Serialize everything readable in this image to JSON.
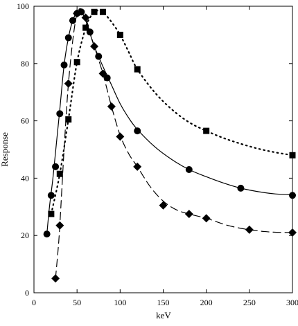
{
  "chart_data": {
    "type": "scatter",
    "title": "",
    "xlabel": "keV",
    "ylabel": "Response",
    "xlim": [
      0,
      300
    ],
    "ylim": [
      0,
      100
    ],
    "x_ticks": [
      0,
      50,
      100,
      150,
      200,
      250,
      300
    ],
    "y_ticks": [
      0,
      20,
      40,
      60,
      80,
      100
    ],
    "grid": false,
    "legend": "none",
    "series": [
      {
        "marker": "circle",
        "line_style": "solid",
        "color": "#000000",
        "points": [
          [
            15,
            20.5
          ],
          [
            20,
            34
          ],
          [
            25,
            44
          ],
          [
            30,
            62.5
          ],
          [
            35,
            79.5
          ],
          [
            40,
            89
          ],
          [
            45,
            95
          ],
          [
            50,
            97.5
          ],
          [
            55,
            98
          ],
          [
            65,
            91
          ],
          [
            75,
            82.5
          ],
          [
            85,
            75
          ],
          [
            120,
            56.5
          ],
          [
            180,
            43
          ],
          [
            240,
            36.5
          ],
          [
            300,
            34
          ]
        ],
        "curve": [
          [
            15,
            20.5
          ],
          [
            18,
            30
          ],
          [
            22,
            40
          ],
          [
            26,
            52
          ],
          [
            30,
            64
          ],
          [
            35,
            79.5
          ],
          [
            40,
            89
          ],
          [
            45,
            95
          ],
          [
            50,
            97.8
          ],
          [
            55,
            98
          ],
          [
            60,
            95
          ],
          [
            65,
            90.5
          ],
          [
            70,
            86
          ],
          [
            80,
            79
          ],
          [
            90,
            72.5
          ],
          [
            100,
            66
          ],
          [
            110,
            61
          ],
          [
            120,
            57
          ],
          [
            140,
            51
          ],
          [
            160,
            46.5
          ],
          [
            180,
            43
          ],
          [
            200,
            40.5
          ],
          [
            220,
            38.3
          ],
          [
            240,
            36.5
          ],
          [
            260,
            35.3
          ],
          [
            280,
            34.5
          ],
          [
            300,
            34.2
          ]
        ]
      },
      {
        "marker": "square",
        "line_style": "dotted",
        "color": "#000000",
        "points": [
          [
            20,
            27.5
          ],
          [
            30,
            41.5
          ],
          [
            40,
            60.5
          ],
          [
            50,
            80.5
          ],
          [
            60,
            92.5
          ],
          [
            70,
            98
          ],
          [
            80,
            98
          ],
          [
            100,
            90
          ],
          [
            120,
            78
          ],
          [
            200,
            56.5
          ],
          [
            300,
            48
          ]
        ],
        "curve": [
          [
            20,
            27.5
          ],
          [
            30,
            41.5
          ],
          [
            40,
            60.5
          ],
          [
            50,
            80.5
          ],
          [
            60,
            92.5
          ],
          [
            65,
            96
          ],
          [
            70,
            98
          ],
          [
            75,
            98.5
          ],
          [
            80,
            98
          ],
          [
            90,
            94.5
          ],
          [
            100,
            90
          ],
          [
            110,
            84
          ],
          [
            120,
            78
          ],
          [
            140,
            70
          ],
          [
            160,
            64
          ],
          [
            180,
            59.5
          ],
          [
            200,
            56.5
          ],
          [
            220,
            54
          ],
          [
            240,
            52
          ],
          [
            260,
            50.3
          ],
          [
            280,
            49
          ],
          [
            300,
            48
          ]
        ]
      },
      {
        "marker": "diamond",
        "line_style": "dashed",
        "color": "#000000",
        "points": [
          [
            25,
            5
          ],
          [
            30,
            23.5
          ],
          [
            40,
            73
          ],
          [
            50,
            97.5
          ],
          [
            60,
            96
          ],
          [
            70,
            86
          ],
          [
            80,
            76.5
          ],
          [
            90,
            65
          ],
          [
            100,
            54.5
          ],
          [
            120,
            44
          ],
          [
            150,
            30.5
          ],
          [
            180,
            27.5
          ],
          [
            200,
            26
          ],
          [
            250,
            22
          ],
          [
            300,
            21
          ]
        ],
        "curve": [
          [
            25,
            5
          ],
          [
            28,
            15
          ],
          [
            30,
            23.5
          ],
          [
            34,
            45
          ],
          [
            37,
            60
          ],
          [
            40,
            73
          ],
          [
            45,
            88
          ],
          [
            50,
            97.5
          ],
          [
            55,
            99
          ],
          [
            60,
            96
          ],
          [
            65,
            91
          ],
          [
            70,
            86
          ],
          [
            80,
            76.5
          ],
          [
            90,
            65
          ],
          [
            100,
            55
          ],
          [
            110,
            48.5
          ],
          [
            120,
            44
          ],
          [
            135,
            37
          ],
          [
            150,
            32
          ],
          [
            165,
            29
          ],
          [
            180,
            27.5
          ],
          [
            200,
            26
          ],
          [
            225,
            23.5
          ],
          [
            250,
            22
          ],
          [
            275,
            21.2
          ],
          [
            300,
            21
          ]
        ]
      }
    ]
  }
}
